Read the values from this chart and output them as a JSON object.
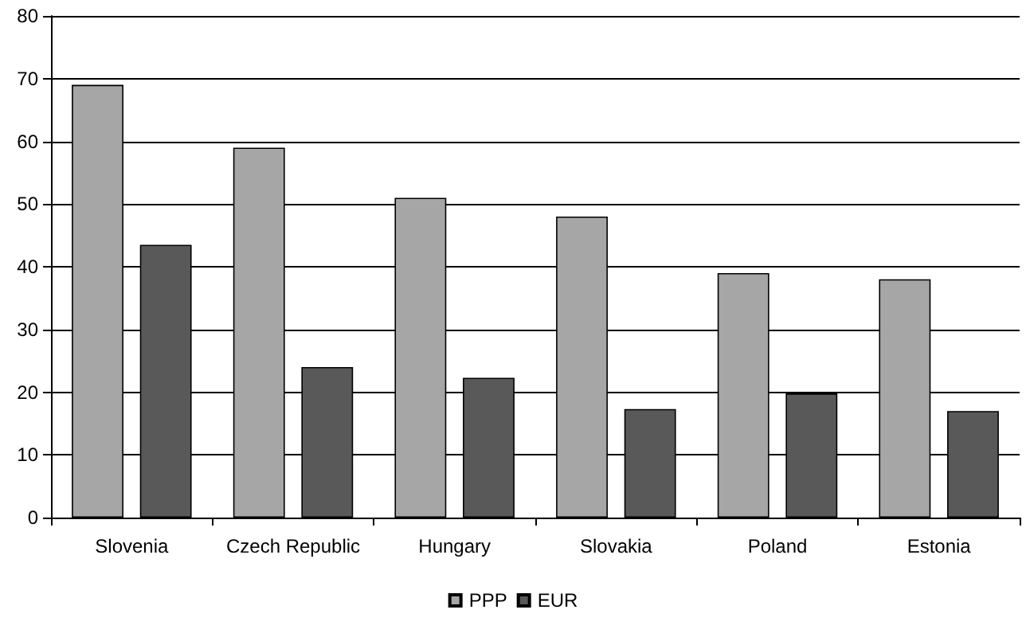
{
  "chart_data": {
    "type": "bar",
    "categories": [
      "Slovenia",
      "Czech Republic",
      "Hungary",
      "Slovakia",
      "Poland",
      "Estonia"
    ],
    "series": [
      {
        "name": "PPP",
        "color": "#a6a6a6",
        "values": [
          69,
          59,
          51,
          48,
          39,
          38
        ]
      },
      {
        "name": "EUR",
        "color": "#595959",
        "values": [
          43.5,
          24,
          22.3,
          17.3,
          19.8,
          17
        ]
      }
    ],
    "ylim": [
      0,
      80
    ],
    "yticks": [
      0,
      10,
      20,
      30,
      40,
      50,
      60,
      70,
      80
    ],
    "grid": "y",
    "legend": "bottom"
  }
}
